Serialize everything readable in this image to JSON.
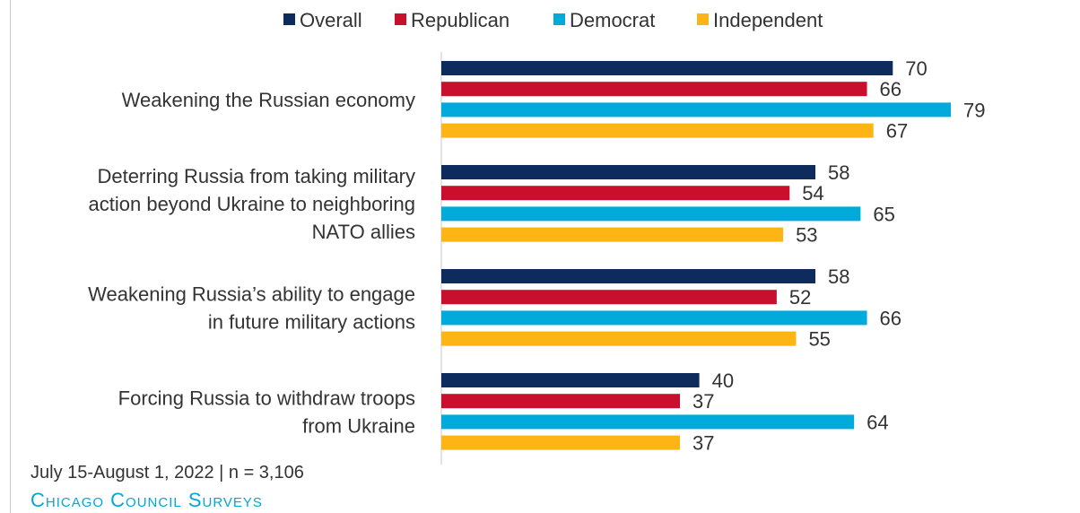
{
  "chart_data": {
    "type": "bar",
    "orientation": "horizontal",
    "categories": [
      "Weakening the Russian economy",
      "Deterring Russia from taking military action beyond Ukraine to neighboring NATO allies",
      "Weakening Russia’s ability to engage in future military actions",
      "Forcing Russia to withdraw troops from Ukraine"
    ],
    "category_lines": [
      [
        "Weakening the Russian economy"
      ],
      [
        "Deterring Russia from taking military",
        "action beyond Ukraine to neighboring",
        "NATO allies"
      ],
      [
        "Weakening Russia’s ability to engage",
        "in future military actions"
      ],
      [
        "Forcing Russia to withdraw troops",
        "from Ukraine"
      ]
    ],
    "series": [
      {
        "name": "Overall",
        "color": "#0d2b5c",
        "values": [
          70,
          58,
          58,
          40
        ]
      },
      {
        "name": "Republican",
        "color": "#c8102e",
        "values": [
          66,
          54,
          52,
          37
        ]
      },
      {
        "name": "Democrat",
        "color": "#00aadb",
        "values": [
          79,
          65,
          66,
          64
        ]
      },
      {
        "name": "Independent",
        "color": "#fdb515",
        "values": [
          67,
          53,
          55,
          37
        ]
      }
    ],
    "legend_position": "top",
    "data_labels": true,
    "grid": false,
    "xlim": [
      0,
      100
    ]
  },
  "footer": {
    "note": "July 15-August 1, 2022 | n = 3,106",
    "brand": "Chicago Council Surveys"
  }
}
